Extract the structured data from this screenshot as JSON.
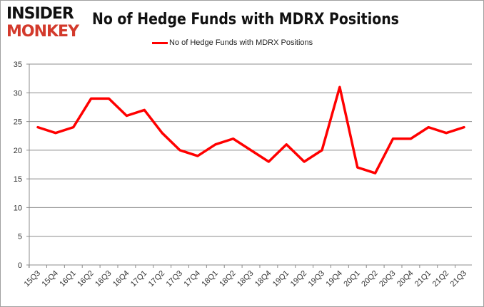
{
  "logo": {
    "line1": "INSIDER",
    "line2": "MONKEY"
  },
  "chart_data": {
    "type": "line",
    "title": "No of Hedge Funds with MDRX Positions",
    "legend_position": "top",
    "grid": true,
    "ylim": [
      0,
      35
    ],
    "yticks": [
      0,
      5,
      10,
      15,
      20,
      25,
      30,
      35
    ],
    "categories": [
      "15Q3",
      "15Q4",
      "16Q1",
      "16Q2",
      "16Q3",
      "16Q4",
      "17Q1",
      "17Q2",
      "17Q3",
      "17Q4",
      "18Q1",
      "18Q2",
      "18Q3",
      "18Q4",
      "19Q1",
      "19Q2",
      "19Q3",
      "19Q4",
      "20Q1",
      "20Q2",
      "20Q3",
      "20Q4",
      "21Q1",
      "21Q2",
      "21Q3"
    ],
    "series": [
      {
        "name": "No of Hedge Funds with MDRX Positions",
        "color": "#ff0000",
        "values": [
          24,
          23,
          24,
          29,
          29,
          26,
          27,
          23,
          20,
          19,
          21,
          22,
          20,
          18,
          21,
          18,
          20,
          31,
          17,
          16,
          22,
          22,
          24,
          23,
          24
        ]
      }
    ]
  }
}
